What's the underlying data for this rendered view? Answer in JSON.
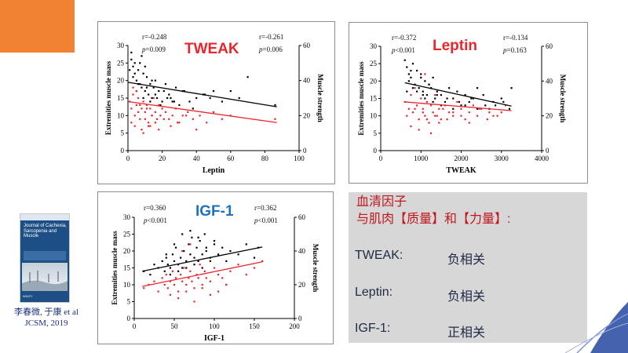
{
  "colors": {
    "accent": "#f08232",
    "male": "#000000",
    "female": "#e8262b",
    "title_red": "#e8262b",
    "title_blue": "#1e73be",
    "summary_head": "#c0161c",
    "summary_text": "#1f2a44",
    "summary_bg": "#d7d7d7"
  },
  "citation": {
    "line1": "李春微, 于康 et al",
    "line2": "JCSM, 2019"
  },
  "journal_cover": {
    "title": "Journal of Cachexia, Sarcopenia and Muscle",
    "publisher": "WILEY"
  },
  "summary": {
    "heading_line1": "血清因子",
    "heading_line2": "与肌肉【质量】和【力量】:",
    "rows": [
      {
        "factor": "TWEAK:",
        "relation": "负相关"
      },
      {
        "factor": "Leptin:",
        "relation": "负相关"
      },
      {
        "factor": "IGF-1:",
        "relation": "正相关"
      }
    ]
  },
  "chart_data": [
    {
      "id": "leptin",
      "type": "scatter",
      "title": "TWEAK",
      "title_color": "#e8262b",
      "xlabel": "Leptin",
      "ylabel": "Extremities muscle mass",
      "y2label": "Muscle strength",
      "xlim": [
        0,
        100
      ],
      "xticks": [
        0,
        20,
        40,
        60,
        80,
        100
      ],
      "ylim": [
        0,
        30
      ],
      "yticks": [
        0,
        5,
        10,
        15,
        20,
        25,
        30
      ],
      "y2lim": [
        0,
        60
      ],
      "y2ticks": [
        0,
        20,
        40,
        60
      ],
      "stat_left": {
        "r": "r=-0.248",
        "p_label": "p",
        "p_value": "=0.009"
      },
      "stat_right": {
        "r": "r=-0.261",
        "p_label": "p",
        "p_value": "=0.006"
      },
      "series": [
        {
          "color": "#000000",
          "fit": [
            [
              0,
              19.5
            ],
            [
              87,
              12.5
            ]
          ],
          "x": [
            2,
            3,
            4,
            5,
            6,
            7,
            8,
            9,
            10,
            11,
            12,
            13,
            14,
            15,
            16,
            18,
            20,
            22,
            24,
            25,
            28,
            30,
            33,
            36,
            40,
            45,
            50,
            1,
            3,
            5,
            7,
            9,
            11,
            13,
            16,
            19,
            23,
            27,
            32,
            38,
            44,
            48,
            55,
            60,
            65,
            70,
            86,
            2,
            4,
            6,
            8,
            10,
            14,
            17,
            21,
            26
          ],
          "y": [
            26,
            24,
            22,
            20,
            19,
            25,
            18,
            22,
            17,
            21,
            16,
            19,
            15,
            18,
            20,
            17,
            14,
            19,
            16,
            15,
            18,
            13,
            17,
            14,
            15,
            16,
            17,
            23,
            21,
            17,
            19,
            15,
            18,
            14,
            16,
            13,
            15,
            14,
            17,
            12,
            16,
            15,
            14,
            17,
            15,
            21,
            13,
            28,
            25,
            23,
            27,
            24,
            20,
            15,
            17,
            14
          ]
        },
        {
          "color": "#e8262b",
          "fit": [
            [
              0,
              14.0
            ],
            [
              87,
              8.0
            ]
          ],
          "x": [
            1,
            2,
            3,
            4,
            5,
            6,
            7,
            8,
            9,
            10,
            11,
            12,
            13,
            14,
            15,
            16,
            17,
            18,
            19,
            20,
            22,
            24,
            26,
            28,
            30,
            32,
            35,
            38,
            42,
            46,
            50,
            55,
            60,
            2,
            4,
            6,
            8,
            10,
            12,
            14,
            16,
            18,
            21,
            25,
            29,
            34,
            40,
            86,
            3,
            5,
            7,
            9,
            11,
            13
          ],
          "y": [
            14,
            12,
            16,
            10,
            13,
            15,
            9,
            12,
            14,
            11,
            13,
            8,
            12,
            10,
            15,
            11,
            9,
            13,
            10,
            12,
            11,
            9,
            10,
            12,
            8,
            10,
            11,
            9,
            10,
            8,
            11,
            9,
            10,
            8,
            7,
            11,
            6,
            9,
            7,
            10,
            8,
            6,
            9,
            7,
            8,
            10,
            6,
            9,
            18,
            17,
            13,
            5,
            12,
            7
          ]
        }
      ]
    },
    {
      "id": "tweak",
      "type": "scatter",
      "title": "Leptin",
      "title_color": "#e8262b",
      "xlabel": "TWEAK",
      "ylabel": "Extremities muscle mass",
      "y2label": "Muscle strength",
      "xlim": [
        0,
        4000
      ],
      "xticks": [
        0,
        1000,
        2000,
        3000,
        4000
      ],
      "ylim": [
        0,
        30
      ],
      "yticks": [
        0,
        5,
        10,
        15,
        20,
        25,
        30
      ],
      "y2lim": [
        0,
        60
      ],
      "y2ticks": [
        0,
        20,
        40,
        60
      ],
      "stat_left": {
        "r": "r=-0.372",
        "p_label": "p",
        "p_value": "<0.001"
      },
      "stat_right": {
        "r": "r=-0.134",
        "p_label": "p",
        "p_value": "=0.163"
      },
      "series": [
        {
          "color": "#000000",
          "fit": [
            [
              600,
              19.5
            ],
            [
              3250,
              12.8
            ]
          ],
          "x": [
            600,
            650,
            700,
            750,
            800,
            850,
            900,
            950,
            1000,
            1050,
            1100,
            1150,
            1200,
            1250,
            1300,
            1350,
            1400,
            1500,
            1600,
            1700,
            1800,
            1900,
            2000,
            2100,
            2200,
            2300,
            2400,
            2600,
            2800,
            3000,
            3200,
            700,
            800,
            900,
            1000,
            1100,
            1200,
            1300,
            1400,
            1500,
            1650,
            1800,
            1950,
            2100,
            2250,
            2400,
            2550,
            2700,
            2850,
            3050,
            3250,
            650,
            750,
            1050
          ],
          "y": [
            26,
            24,
            22,
            21,
            25,
            19,
            23,
            18,
            22,
            17,
            20,
            16,
            19,
            18,
            21,
            15,
            17,
            16,
            14,
            18,
            15,
            17,
            13,
            16,
            14,
            15,
            18,
            13,
            14,
            15,
            12,
            20,
            18,
            17,
            21,
            15,
            19,
            14,
            16,
            13,
            15,
            12,
            14,
            13,
            15,
            12,
            16,
            12,
            13,
            14,
            18,
            17,
            23,
            16
          ]
        },
        {
          "color": "#e8262b",
          "fit": [
            [
              600,
              14.0
            ],
            [
              3250,
              11.5
            ]
          ],
          "x": [
            600,
            700,
            750,
            800,
            850,
            900,
            950,
            1000,
            1050,
            1100,
            1150,
            1200,
            1250,
            1300,
            1350,
            1400,
            1450,
            1500,
            1600,
            1700,
            1800,
            1900,
            2000,
            2100,
            2200,
            2300,
            2400,
            2500,
            2700,
            2900,
            3100,
            650,
            750,
            850,
            950,
            1050,
            1150,
            1250,
            1350,
            1450,
            1550,
            1650,
            1800,
            2000,
            2200,
            2450,
            2650,
            2800,
            3000,
            1100
          ],
          "y": [
            14,
            12,
            16,
            11,
            18,
            13,
            9,
            15,
            12,
            10,
            14,
            8,
            13,
            11,
            16,
            10,
            12,
            9,
            13,
            11,
            10,
            14,
            12,
            9,
            11,
            13,
            10,
            12,
            11,
            10,
            13,
            10,
            7,
            12,
            6,
            11,
            9,
            5,
            10,
            8,
            12,
            9,
            11,
            10,
            8,
            12,
            9,
            10,
            11,
            22
          ]
        }
      ]
    },
    {
      "id": "igf1",
      "type": "scatter",
      "title": "IGF-1",
      "title_color": "#1e73be",
      "xlabel": "IGF-1",
      "ylabel": "Extremities muscle mass",
      "y2label": "Muscle strength",
      "xlim": [
        0,
        200
      ],
      "xticks": [
        0,
        50,
        100,
        150,
        200
      ],
      "ylim": [
        0,
        30
      ],
      "yticks": [
        0,
        5,
        10,
        15,
        20,
        25,
        30
      ],
      "y2lim": [
        0,
        60
      ],
      "y2ticks": [
        0,
        20,
        40,
        60
      ],
      "stat_left": {
        "r": "r=0.360",
        "p_label": "p",
        "p_value": "<0.001"
      },
      "stat_right": {
        "r": "r=0.362",
        "p_label": "p",
        "p_value": "<0.001"
      },
      "series": [
        {
          "color": "#000000",
          "fit": [
            [
              10,
              14.0
            ],
            [
              160,
              21.2
            ]
          ],
          "x": [
            12,
            20,
            25,
            30,
            35,
            38,
            40,
            42,
            45,
            48,
            50,
            52,
            55,
            58,
            60,
            62,
            65,
            68,
            70,
            72,
            75,
            78,
            80,
            82,
            85,
            88,
            90,
            95,
            100,
            105,
            110,
            115,
            120,
            130,
            140,
            150,
            155,
            45,
            55,
            65,
            75,
            85,
            95,
            60,
            70,
            80,
            90,
            100,
            50,
            40
          ],
          "y": [
            14,
            13,
            16,
            15,
            17,
            14,
            18,
            16,
            15,
            19,
            17,
            21,
            16,
            18,
            15,
            20,
            17,
            22,
            19,
            24,
            18,
            21,
            17,
            23,
            19,
            25,
            20,
            18,
            22,
            19,
            21,
            17,
            20,
            19,
            22,
            18,
            21,
            13,
            14,
            15,
            16,
            15,
            17,
            25,
            26,
            24,
            21,
            23,
            22,
            19
          ]
        },
        {
          "color": "#e8262b",
          "fit": [
            [
              10,
              9.5
            ],
            [
              160,
              16.8
            ]
          ],
          "x": [
            12,
            18,
            25,
            30,
            35,
            38,
            40,
            42,
            45,
            48,
            50,
            52,
            55,
            58,
            60,
            62,
            65,
            68,
            70,
            72,
            75,
            78,
            80,
            82,
            85,
            88,
            90,
            95,
            100,
            105,
            110,
            115,
            120,
            130,
            140,
            150,
            160,
            45,
            55,
            65,
            75,
            85,
            95,
            105,
            115,
            60,
            70,
            80
          ],
          "y": [
            9,
            10,
            11,
            8,
            12,
            10,
            13,
            9,
            11,
            14,
            10,
            12,
            8,
            13,
            11,
            15,
            10,
            12,
            14,
            11,
            9,
            13,
            12,
            16,
            10,
            14,
            12,
            11,
            15,
            13,
            12,
            10,
            14,
            16,
            13,
            15,
            17,
            7,
            6,
            8,
            5,
            9,
            7,
            8,
            10,
            20,
            22,
            12
          ]
        }
      ]
    }
  ]
}
